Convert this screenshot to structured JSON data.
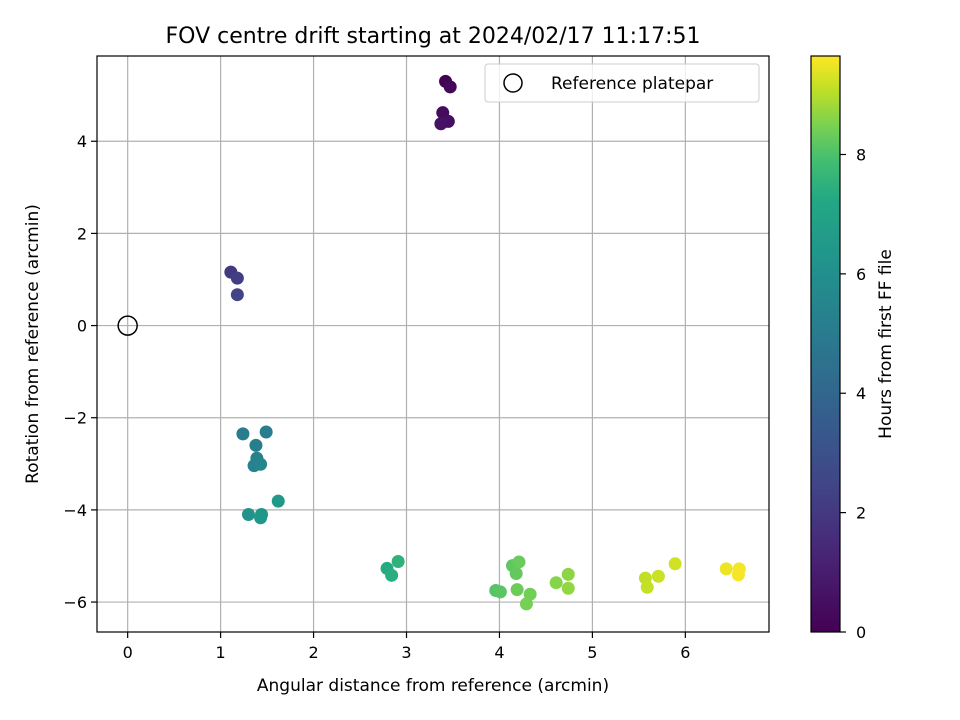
{
  "chart_data": {
    "type": "scatter",
    "title": "FOV centre drift starting at 2024/02/17 11:17:51",
    "xlabel": "Angular distance from reference (arcmin)",
    "ylabel": "Rotation from reference (arcmin)",
    "colorbar_label": "Hours from first FF file",
    "xlim": [
      -0.33,
      6.9
    ],
    "ylim": [
      -6.65,
      5.85
    ],
    "clim": [
      0,
      9.65
    ],
    "colormap": "viridis",
    "x_ticks": [
      0,
      1,
      2,
      3,
      4,
      5,
      6
    ],
    "y_ticks": [
      -6,
      -4,
      -2,
      0,
      2,
      4
    ],
    "colorbar_ticks": [
      0,
      2,
      4,
      6,
      8
    ],
    "grid": true,
    "legend": {
      "position": "top-right",
      "entries": [
        "Reference platepar"
      ]
    },
    "reference": {
      "x": 0,
      "y": 0
    },
    "points": [
      {
        "x": 3.42,
        "y": 5.3,
        "h": 0.05
      },
      {
        "x": 3.47,
        "y": 5.18,
        "h": 0.2
      },
      {
        "x": 3.39,
        "y": 4.62,
        "h": 0.35
      },
      {
        "x": 3.45,
        "y": 4.43,
        "h": 0.5
      },
      {
        "x": 3.37,
        "y": 4.38,
        "h": 0.6
      },
      {
        "x": 1.11,
        "y": 1.16,
        "h": 2.0
      },
      {
        "x": 1.18,
        "y": 1.03,
        "h": 2.2
      },
      {
        "x": 1.18,
        "y": 0.67,
        "h": 2.4
      },
      {
        "x": 1.24,
        "y": -2.35,
        "h": 5.0
      },
      {
        "x": 1.49,
        "y": -2.31,
        "h": 5.1
      },
      {
        "x": 1.38,
        "y": -2.6,
        "h": 5.2
      },
      {
        "x": 1.39,
        "y": -2.88,
        "h": 5.3
      },
      {
        "x": 1.36,
        "y": -3.04,
        "h": 5.4
      },
      {
        "x": 1.43,
        "y": -3.01,
        "h": 5.5
      },
      {
        "x": 1.3,
        "y": -4.1,
        "h": 6.2
      },
      {
        "x": 1.44,
        "y": -4.1,
        "h": 6.3
      },
      {
        "x": 1.43,
        "y": -4.17,
        "h": 6.4
      },
      {
        "x": 1.62,
        "y": -3.81,
        "h": 6.5
      },
      {
        "x": 2.79,
        "y": -5.27,
        "h": 7.3
      },
      {
        "x": 2.84,
        "y": -5.42,
        "h": 7.4
      },
      {
        "x": 2.91,
        "y": -5.12,
        "h": 7.5
      },
      {
        "x": 3.96,
        "y": -5.75,
        "h": 8.1
      },
      {
        "x": 4.01,
        "y": -5.78,
        "h": 8.15
      },
      {
        "x": 4.14,
        "y": -5.21,
        "h": 8.2
      },
      {
        "x": 4.18,
        "y": -5.38,
        "h": 8.25
      },
      {
        "x": 4.21,
        "y": -5.13,
        "h": 8.3
      },
      {
        "x": 4.19,
        "y": -5.73,
        "h": 8.35
      },
      {
        "x": 4.33,
        "y": -5.83,
        "h": 8.4
      },
      {
        "x": 4.29,
        "y": -6.04,
        "h": 8.45
      },
      {
        "x": 4.61,
        "y": -5.58,
        "h": 8.6
      },
      {
        "x": 4.74,
        "y": -5.4,
        "h": 8.65
      },
      {
        "x": 4.74,
        "y": -5.7,
        "h": 8.7
      },
      {
        "x": 5.57,
        "y": -5.48,
        "h": 9.1
      },
      {
        "x": 5.59,
        "y": -5.68,
        "h": 9.15
      },
      {
        "x": 5.71,
        "y": -5.44,
        "h": 9.2
      },
      {
        "x": 5.89,
        "y": -5.17,
        "h": 9.25
      },
      {
        "x": 6.44,
        "y": -5.28,
        "h": 9.5
      },
      {
        "x": 6.58,
        "y": -5.28,
        "h": 9.55
      },
      {
        "x": 6.57,
        "y": -5.41,
        "h": 9.6
      }
    ]
  }
}
